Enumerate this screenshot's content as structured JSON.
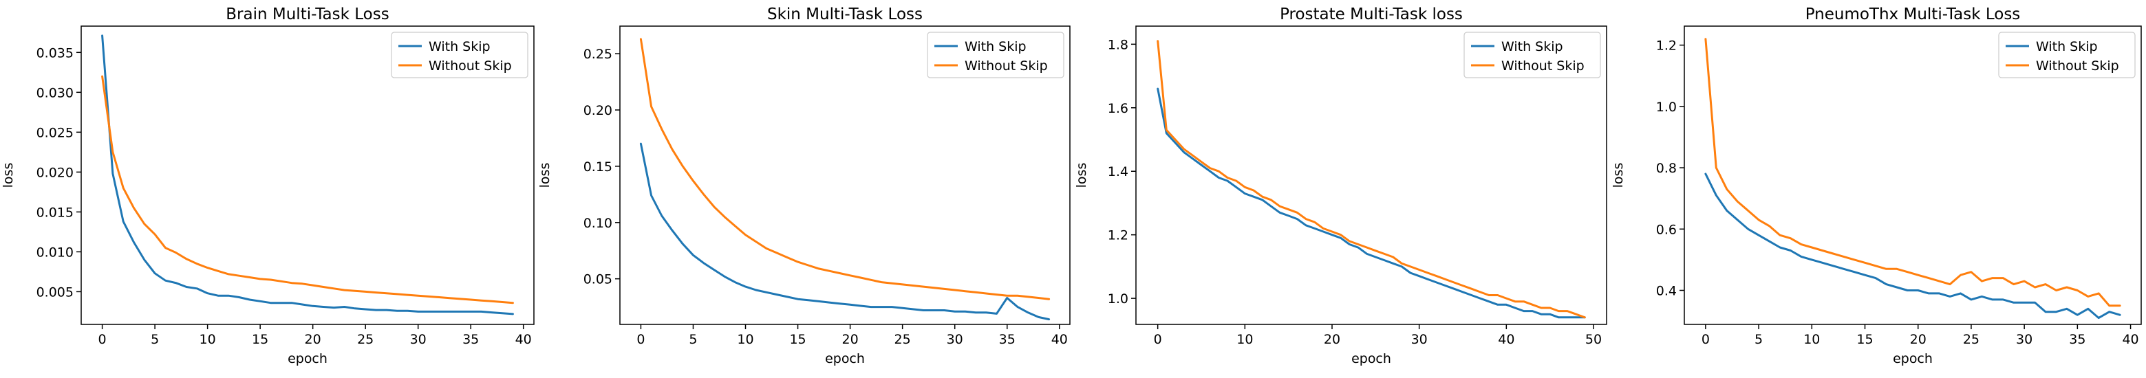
{
  "colors": {
    "with_skip": "#1f77b4",
    "without_skip": "#ff7f0e"
  },
  "chart_data": [
    {
      "type": "line",
      "title": "Brain Multi-Task Loss",
      "xlabel": "epoch",
      "ylabel": "loss",
      "xlim": [
        -2,
        41
      ],
      "ylim": [
        0.0009,
        0.0383
      ],
      "xticks": [
        0,
        5,
        10,
        15,
        20,
        25,
        30,
        35,
        40
      ],
      "yticks": [
        0.005,
        0.01,
        0.015,
        0.02,
        0.025,
        0.03,
        0.035
      ],
      "ytick_labels": [
        "0.005",
        "0.010",
        "0.015",
        "0.020",
        "0.025",
        "0.030",
        "0.035"
      ],
      "legend": "top-right",
      "series": [
        {
          "name": "With Skip",
          "x_start": 0,
          "values": [
            0.0371,
            0.0198,
            0.0138,
            0.0112,
            0.009,
            0.0073,
            0.0064,
            0.0061,
            0.0056,
            0.0054,
            0.0048,
            0.0045,
            0.0045,
            0.0043,
            0.004,
            0.0038,
            0.0036,
            0.0036,
            0.0036,
            0.0034,
            0.0032,
            0.0031,
            0.003,
            0.0031,
            0.0029,
            0.0028,
            0.0027,
            0.0027,
            0.0026,
            0.0026,
            0.0025,
            0.0025,
            0.0025,
            0.0025,
            0.0025,
            0.0025,
            0.0025,
            0.0024,
            0.0023,
            0.0022
          ]
        },
        {
          "name": "Without Skip",
          "x_start": 0,
          "values": [
            0.032,
            0.0225,
            0.018,
            0.0155,
            0.0135,
            0.0122,
            0.0105,
            0.0099,
            0.0091,
            0.0085,
            0.008,
            0.0076,
            0.0072,
            0.007,
            0.0068,
            0.0066,
            0.0065,
            0.0063,
            0.0061,
            0.006,
            0.0058,
            0.0056,
            0.0054,
            0.0052,
            0.0051,
            0.005,
            0.0049,
            0.0048,
            0.0047,
            0.0046,
            0.0045,
            0.0044,
            0.0043,
            0.0042,
            0.0041,
            0.004,
            0.0039,
            0.0038,
            0.0037,
            0.0036
          ]
        }
      ]
    },
    {
      "type": "line",
      "title": "Skin Multi-Task Loss",
      "xlabel": "epoch",
      "ylabel": "loss",
      "xlim": [
        -2,
        41
      ],
      "ylim": [
        0.0095,
        0.2745
      ],
      "xticks": [
        0,
        5,
        10,
        15,
        20,
        25,
        30,
        35,
        40
      ],
      "yticks": [
        0.05,
        0.1,
        0.15,
        0.2,
        0.25
      ],
      "ytick_labels": [
        "0.05",
        "0.10",
        "0.15",
        "0.20",
        "0.25"
      ],
      "legend": "top-right",
      "series": [
        {
          "name": "With Skip",
          "x_start": 0,
          "values": [
            0.17,
            0.124,
            0.106,
            0.093,
            0.081,
            0.071,
            0.064,
            0.058,
            0.052,
            0.047,
            0.043,
            0.04,
            0.038,
            0.036,
            0.034,
            0.032,
            0.031,
            0.03,
            0.029,
            0.028,
            0.027,
            0.026,
            0.025,
            0.025,
            0.025,
            0.024,
            0.023,
            0.022,
            0.022,
            0.022,
            0.021,
            0.021,
            0.02,
            0.02,
            0.019,
            0.033,
            0.025,
            0.02,
            0.016,
            0.014
          ]
        },
        {
          "name": "Without Skip",
          "x_start": 0,
          "values": [
            0.263,
            0.203,
            0.183,
            0.165,
            0.15,
            0.137,
            0.125,
            0.114,
            0.105,
            0.097,
            0.089,
            0.083,
            0.077,
            0.073,
            0.069,
            0.065,
            0.062,
            0.059,
            0.057,
            0.055,
            0.053,
            0.051,
            0.049,
            0.047,
            0.046,
            0.045,
            0.044,
            0.043,
            0.042,
            0.041,
            0.04,
            0.039,
            0.038,
            0.037,
            0.036,
            0.035,
            0.035,
            0.034,
            0.033,
            0.032
          ]
        }
      ]
    },
    {
      "type": "line",
      "title": "Prostate Multi-Task loss",
      "xlabel": "epoch",
      "ylabel": "loss",
      "xlim": [
        -2.5,
        51.5
      ],
      "ylim": [
        0.918,
        1.857
      ],
      "xticks": [
        0,
        10,
        20,
        30,
        40,
        50
      ],
      "yticks": [
        1.0,
        1.2,
        1.4,
        1.6,
        1.8
      ],
      "ytick_labels": [
        "1.0",
        "1.2",
        "1.4",
        "1.6",
        "1.8"
      ],
      "legend": "top-right",
      "series": [
        {
          "name": "With Skip",
          "x_start": 0,
          "values": [
            1.66,
            1.52,
            1.49,
            1.46,
            1.44,
            1.42,
            1.4,
            1.38,
            1.37,
            1.35,
            1.33,
            1.32,
            1.31,
            1.29,
            1.27,
            1.26,
            1.25,
            1.23,
            1.22,
            1.21,
            1.2,
            1.19,
            1.17,
            1.16,
            1.14,
            1.13,
            1.12,
            1.11,
            1.1,
            1.08,
            1.07,
            1.06,
            1.05,
            1.04,
            1.03,
            1.02,
            1.01,
            1.0,
            0.99,
            0.98,
            0.98,
            0.97,
            0.96,
            0.96,
            0.95,
            0.95,
            0.94,
            0.94,
            0.94,
            0.94
          ]
        },
        {
          "name": "Without Skip",
          "x_start": 0,
          "values": [
            1.81,
            1.53,
            1.5,
            1.47,
            1.45,
            1.43,
            1.41,
            1.4,
            1.38,
            1.37,
            1.35,
            1.34,
            1.32,
            1.31,
            1.29,
            1.28,
            1.27,
            1.25,
            1.24,
            1.22,
            1.21,
            1.2,
            1.18,
            1.17,
            1.16,
            1.15,
            1.14,
            1.13,
            1.11,
            1.1,
            1.09,
            1.08,
            1.07,
            1.06,
            1.05,
            1.04,
            1.03,
            1.02,
            1.01,
            1.01,
            1.0,
            0.99,
            0.99,
            0.98,
            0.97,
            0.97,
            0.96,
            0.96,
            0.95,
            0.94
          ]
        }
      ]
    },
    {
      "type": "line",
      "title": "PneumoThx Multi-Task Loss",
      "xlabel": "epoch",
      "ylabel": "loss",
      "xlim": [
        -2,
        41
      ],
      "ylim": [
        0.289,
        1.262
      ],
      "xticks": [
        0,
        5,
        10,
        15,
        20,
        25,
        30,
        35,
        40
      ],
      "yticks": [
        0.4,
        0.6,
        0.8,
        1.0,
        1.2
      ],
      "ytick_labels": [
        "0.4",
        "0.6",
        "0.8",
        "1.0",
        "1.2"
      ],
      "legend": "top-right",
      "series": [
        {
          "name": "With Skip",
          "x_start": 0,
          "values": [
            0.78,
            0.71,
            0.66,
            0.63,
            0.6,
            0.58,
            0.56,
            0.54,
            0.53,
            0.51,
            0.5,
            0.49,
            0.48,
            0.47,
            0.46,
            0.45,
            0.44,
            0.42,
            0.41,
            0.4,
            0.4,
            0.39,
            0.39,
            0.38,
            0.39,
            0.37,
            0.38,
            0.37,
            0.37,
            0.36,
            0.36,
            0.36,
            0.33,
            0.33,
            0.34,
            0.32,
            0.34,
            0.31,
            0.33,
            0.32
          ]
        },
        {
          "name": "Without Skip",
          "x_start": 0,
          "values": [
            1.22,
            0.8,
            0.73,
            0.69,
            0.66,
            0.63,
            0.61,
            0.58,
            0.57,
            0.55,
            0.54,
            0.53,
            0.52,
            0.51,
            0.5,
            0.49,
            0.48,
            0.47,
            0.47,
            0.46,
            0.45,
            0.44,
            0.43,
            0.42,
            0.45,
            0.46,
            0.43,
            0.44,
            0.44,
            0.42,
            0.43,
            0.41,
            0.42,
            0.4,
            0.41,
            0.4,
            0.38,
            0.39,
            0.35,
            0.35
          ]
        }
      ]
    }
  ]
}
